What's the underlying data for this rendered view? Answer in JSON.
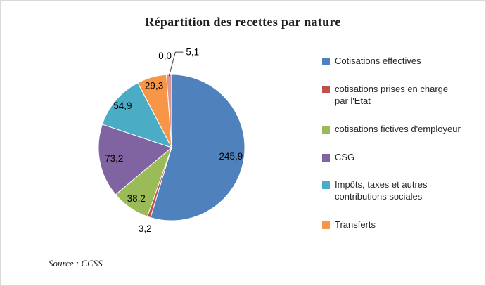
{
  "chart_data": {
    "type": "pie",
    "title": "Répartition  des recettes  par nature",
    "source": "Source  : CCSS",
    "legend_position": "right",
    "value_format": "french-decimal-comma",
    "slices": [
      {
        "label": "Cotisations effectives",
        "value": 245.9,
        "display": "245,9",
        "color": "#4F81BD"
      },
      {
        "label": "cotisations prises en charge par l'Etat",
        "value": 3.2,
        "display": "3,2",
        "color": "#C0504D"
      },
      {
        "label": "cotisations fictives d'employeur",
        "value": 38.2,
        "display": "38,2",
        "color": "#9BBB59"
      },
      {
        "label": "CSG",
        "value": 73.2,
        "display": "73,2",
        "color": "#8064A2"
      },
      {
        "label": "Impôts, taxes et autres contributions sociales",
        "value": 54.9,
        "display": "54,9",
        "color": "#4BACC6"
      },
      {
        "label": "Transferts",
        "value": 29.3,
        "display": "29,3",
        "color": "#F79646"
      },
      {
        "label": "",
        "value": 0.0,
        "display": "0,0",
        "color": "#95B3D7"
      },
      {
        "label": "",
        "value": 5.1,
        "display": "5,1",
        "color": "#D99694"
      }
    ],
    "legend": [
      "Cotisations effectives",
      "cotisations prises en charge par l'Etat",
      "cotisations fictives d'employeur",
      "CSG",
      "Impôts, taxes et autres contributions sociales",
      "Transferts"
    ]
  }
}
